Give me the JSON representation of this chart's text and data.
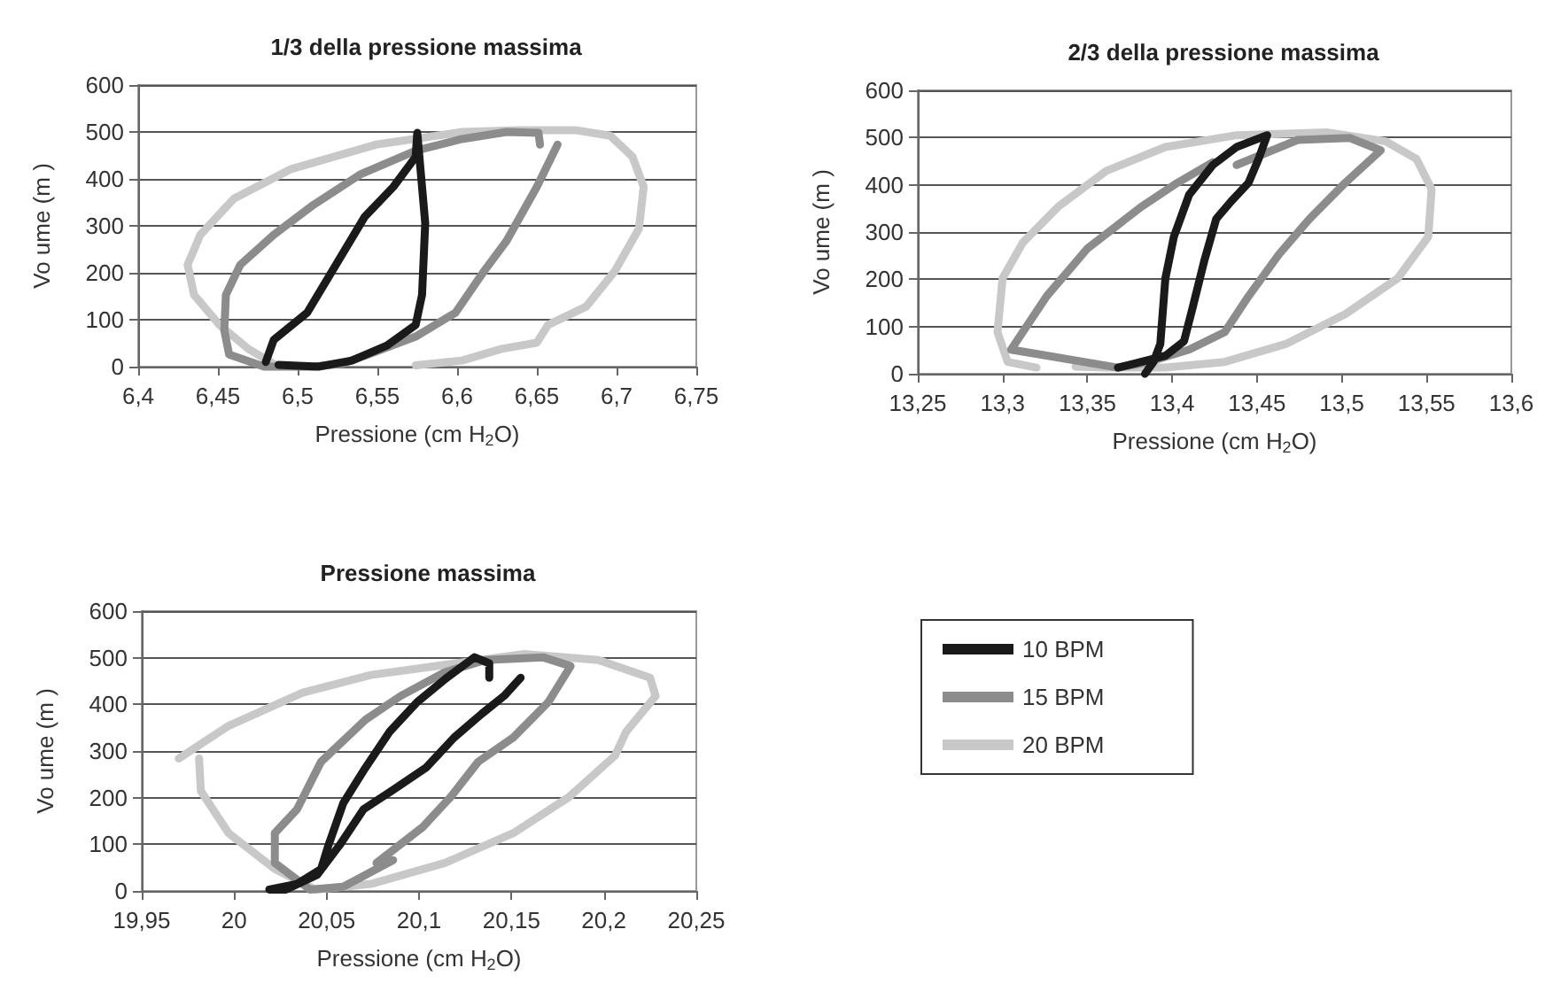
{
  "chart_data": [
    {
      "type": "line",
      "title": "1/3 della pressione massima",
      "xlabel": "Pressione (cm H$_{2}$O)",
      "ylabel": "Vo ume (m )",
      "xlim": [
        6.4,
        6.75
      ],
      "xticks": [
        {
          "value": 6.4,
          "label": "6,4"
        },
        {
          "value": 6.45,
          "label": "6,45"
        },
        {
          "value": 6.5,
          "label": "6,5"
        },
        {
          "value": 6.55,
          "label": "6,55"
        },
        {
          "value": 6.6,
          "label": "6,6"
        },
        {
          "value": 6.65,
          "label": "6,65"
        },
        {
          "value": 6.7,
          "label": "6,7"
        },
        {
          "value": 6.75,
          "label": "6,75"
        }
      ],
      "ylim": [
        0,
        600
      ],
      "yticks": [
        0,
        100,
        200,
        300,
        400,
        500,
        600
      ],
      "grid": "y",
      "legend": false,
      "marker": "none",
      "line_style": "solid",
      "series": [
        {
          "color": "#c8c8c8",
          "x": [
            6.574,
            6.603,
            6.628,
            6.65,
            6.657,
            6.681,
            6.699,
            6.714,
            6.717,
            6.71,
            6.696,
            6.674,
            6.639,
            6.603,
            6.549,
            6.496,
            6.46,
            6.439,
            6.431,
            6.435,
            6.451,
            6.469,
            6.485
          ],
          "values": [
            3,
            13,
            38,
            51,
            89,
            128,
            204,
            294,
            383,
            447,
            492,
            504,
            504,
            500,
            473,
            421,
            358,
            281,
            217,
            153,
            89,
            38,
            6
          ]
        },
        {
          "color": "#8c8c8c",
          "x": [
            6.663,
            6.65,
            6.631,
            6.617,
            6.599,
            6.574,
            6.549,
            6.528,
            6.51,
            6.479,
            6.457,
            6.454,
            6.455,
            6.464,
            6.485,
            6.51,
            6.539,
            6.574,
            6.603,
            6.631,
            6.651,
            6.652
          ],
          "values": [
            473,
            383,
            268,
            204,
            115,
            64,
            32,
            6,
            0,
            0,
            26,
            77,
            153,
            217,
            281,
            345,
            409,
            460,
            485,
            500,
            498,
            473
          ]
        },
        {
          "color": "#1a1a1a",
          "x": [
            6.48,
            6.485,
            6.506,
            6.524,
            6.542,
            6.56,
            6.574,
            6.575,
            6.576,
            6.58,
            6.578,
            6.574,
            6.556,
            6.534,
            6.513,
            6.488
          ],
          "values": [
            10,
            57,
            115,
            217,
            319,
            383,
            447,
            498,
            460,
            306,
            153,
            89,
            45,
            13,
            0,
            4
          ]
        }
      ]
    },
    {
      "type": "line",
      "title": "2/3 della pressione massima",
      "xlabel": "Pressione (cm H$_{2}$O)",
      "ylabel": "Vo ume (m )",
      "xlim": [
        13.25,
        13.6
      ],
      "xticks": [
        {
          "value": 13.25,
          "label": "13,25"
        },
        {
          "value": 13.3,
          "label": "13,3"
        },
        {
          "value": 13.35,
          "label": "13,35"
        },
        {
          "value": 13.4,
          "label": "13,4"
        },
        {
          "value": 13.45,
          "label": "13,45"
        },
        {
          "value": 13.5,
          "label": "13,5"
        },
        {
          "value": 13.55,
          "label": "13,55"
        },
        {
          "value": 13.6,
          "label": "13,6"
        }
      ],
      "ylim": [
        0,
        600
      ],
      "yticks": [
        0,
        100,
        200,
        300,
        400,
        500,
        600
      ],
      "grid": "y",
      "legend": false,
      "marker": "none",
      "line_style": "solid",
      "series": [
        {
          "color": "#c8c8c8",
          "x": [
            13.32,
            13.303,
            13.297,
            13.3,
            13.312,
            13.333,
            13.361,
            13.396,
            13.438,
            13.491,
            13.526,
            13.544,
            13.553,
            13.551,
            13.533,
            13.502,
            13.467,
            13.431,
            13.396,
            13.361,
            13.343
          ],
          "values": [
            13,
            25,
            88,
            202,
            278,
            354,
            429,
            480,
            505,
            511,
            492,
            455,
            391,
            290,
            202,
            126,
            63,
            25,
            13,
            13,
            15
          ]
        },
        {
          "color": "#8c8c8c",
          "x": [
            13.424,
            13.403,
            13.382,
            13.35,
            13.326,
            13.305,
            13.368,
            13.386,
            13.41,
            13.431,
            13.445,
            13.463,
            13.481,
            13.502,
            13.523,
            13.505,
            13.474,
            13.438
          ],
          "values": [
            448,
            404,
            354,
            265,
            164,
            51,
            13,
            25,
            51,
            88,
            164,
            253,
            328,
            404,
            473,
            499,
            495,
            442
          ]
        },
        {
          "color": "#1a1a1a",
          "x": [
            13.384,
            13.389,
            13.393,
            13.396,
            13.401,
            13.41,
            13.424,
            13.438,
            13.456,
            13.451,
            13.445,
            13.435,
            13.426,
            13.419,
            13.412,
            13.407,
            13.396,
            13.375,
            13.368
          ],
          "values": [
            0,
            25,
            63,
            202,
            290,
            379,
            442,
            480,
            505,
            455,
            404,
            366,
            328,
            240,
            139,
            69,
            38,
            19,
            13
          ]
        }
      ]
    },
    {
      "type": "line",
      "title": "Pressione massima",
      "xlabel": "Pressione (cm H$_{2}$O)",
      "ylabel": "Vo ume (m )",
      "xlim": [
        19.95,
        20.25
      ],
      "xticks": [
        {
          "value": 19.95,
          "label": "19,95"
        },
        {
          "value": 20,
          "label": "20"
        },
        {
          "value": 20.05,
          "label": "20,05"
        },
        {
          "value": 20.1,
          "label": "20,1"
        },
        {
          "value": 20.15,
          "label": "20,15"
        },
        {
          "value": 20.2,
          "label": "20,2"
        },
        {
          "value": 20.25,
          "label": "20,25"
        }
      ],
      "ylim": [
        0,
        600
      ],
      "yticks": [
        0,
        100,
        200,
        300,
        400,
        500,
        600
      ],
      "grid": "y",
      "legend": "right",
      "marker": "none",
      "line_style": "solid",
      "series": [
        {
          "name": "20 BPM",
          "color": "#c8c8c8",
          "x": [
            19.97,
            19.997,
            20.037,
            20.074,
            20.12,
            20.157,
            20.197,
            20.225,
            20.228,
            20.212,
            20.206,
            20.181,
            20.151,
            20.114,
            20.074,
            20.044,
            20.022,
            19.997,
            19.982,
            19.981
          ],
          "values": [
            284,
            354,
            425,
            463,
            488,
            508,
            495,
            457,
            418,
            341,
            290,
            201,
            124,
            60,
            15,
            3,
            47,
            124,
            214,
            284
          ]
        },
        {
          "name": "15 BPM",
          "color": "#8c8c8c",
          "x": [
            20.077,
            20.102,
            20.117,
            20.132,
            20.151,
            20.17,
            20.182,
            20.167,
            20.136,
            20.114,
            20.09,
            20.071,
            20.047,
            20.034,
            20.022,
            20.022,
            20.041,
            20.059,
            20.086
          ],
          "values": [
            60,
            137,
            201,
            277,
            329,
            405,
            482,
            501,
            495,
            469,
            418,
            367,
            277,
            175,
            124,
            60,
            3,
            9,
            66
          ]
        },
        {
          "name": "10 BPM",
          "color": "#1a1a1a",
          "x": [
            20.155,
            20.146,
            20.134,
            20.119,
            20.104,
            20.085,
            20.07,
            20.057,
            20.045,
            20.028,
            20.019,
            20.034,
            20.047,
            20.051,
            20.059,
            20.071,
            20.084,
            20.099,
            20.115,
            20.13,
            20.138,
            20.138
          ],
          "values": [
            457,
            418,
            380,
            329,
            265,
            214,
            175,
            98,
            35,
            3,
            3,
            15,
            47,
            98,
            188,
            264,
            341,
            405,
            457,
            501,
            488,
            457
          ]
        }
      ]
    }
  ]
}
